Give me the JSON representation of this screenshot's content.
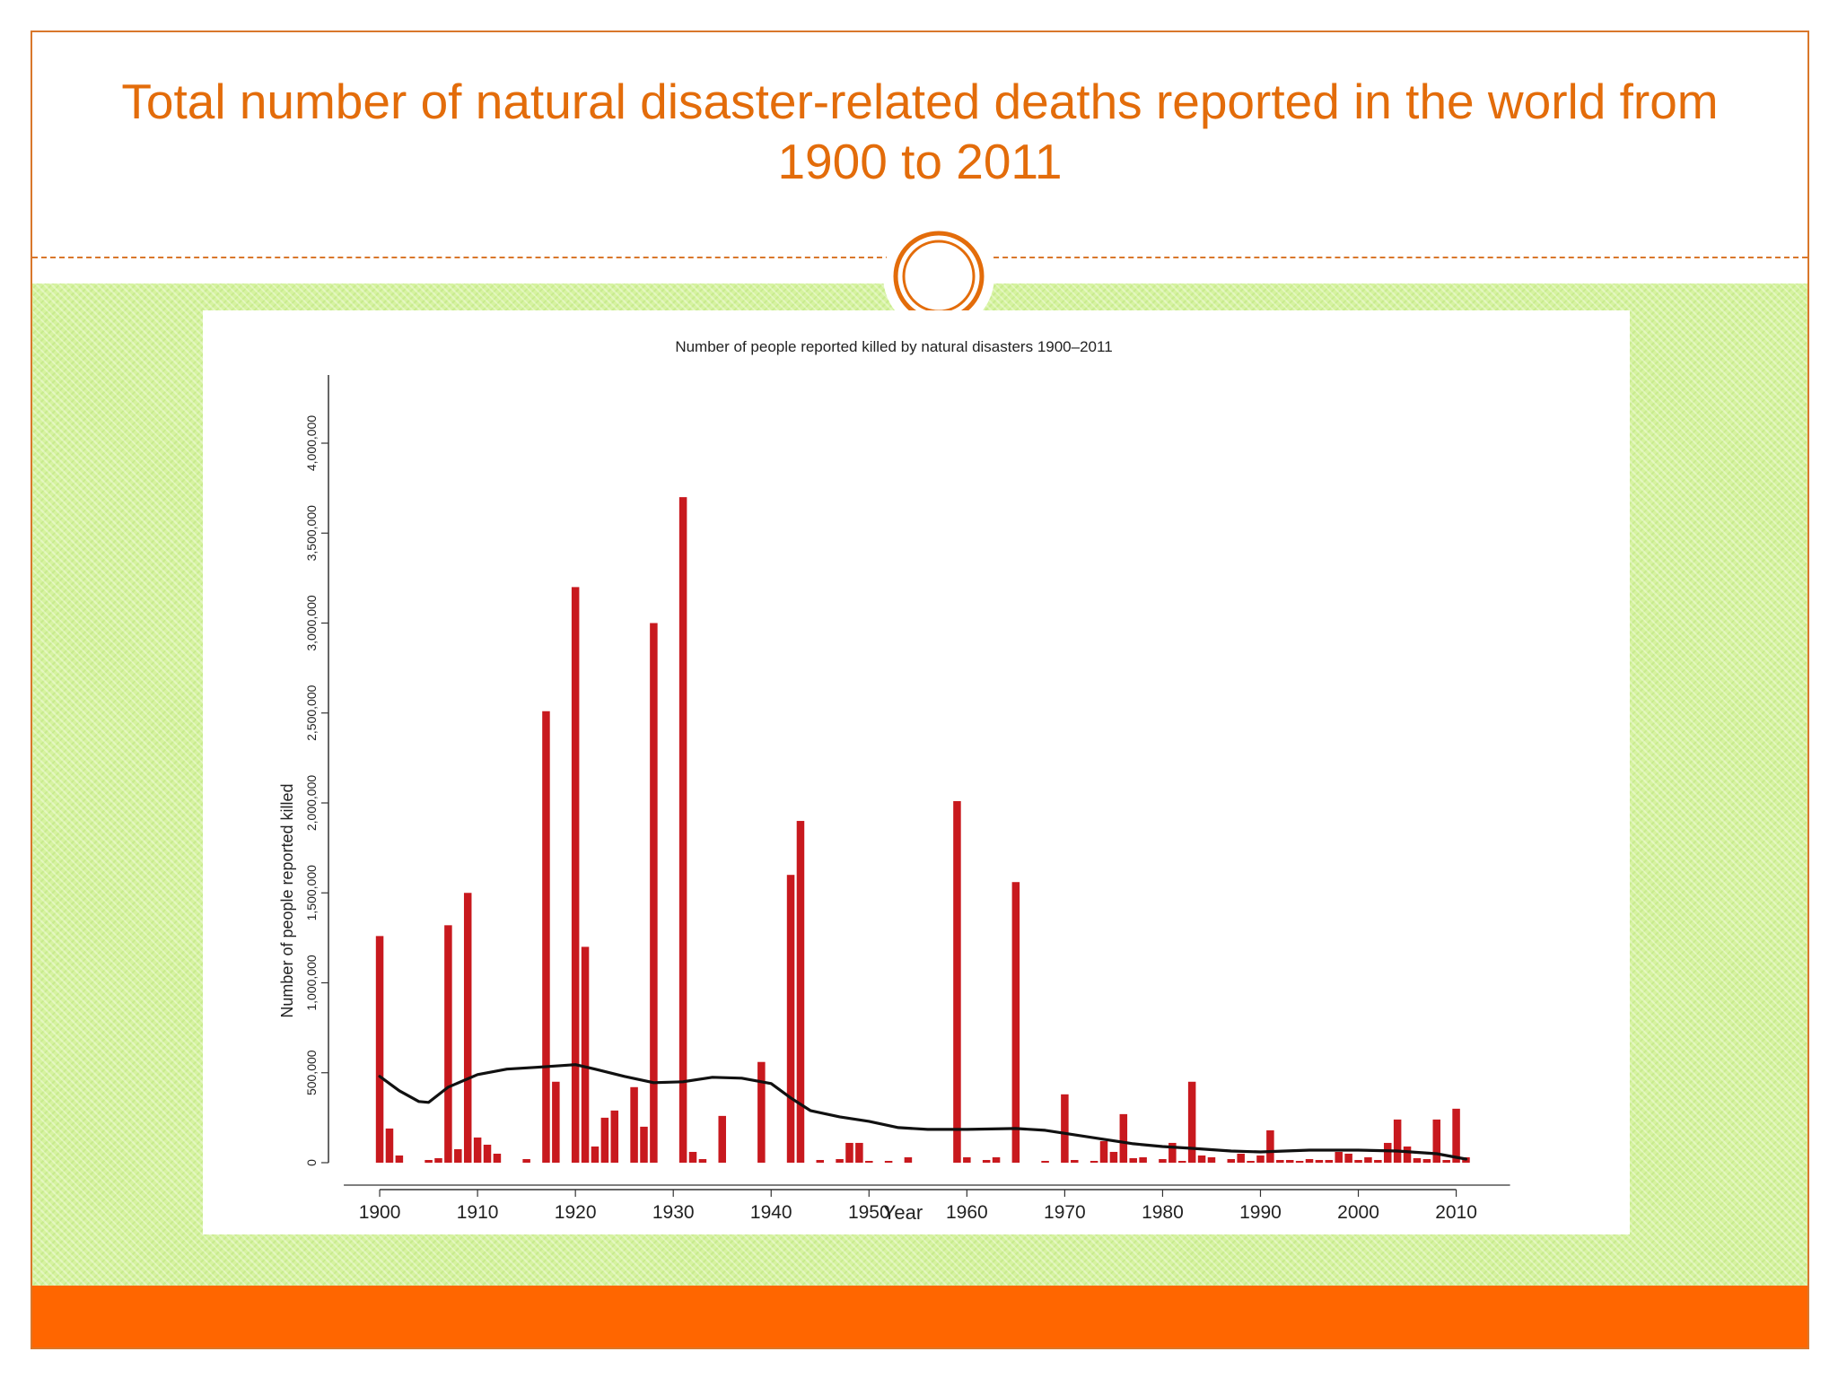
{
  "slide": {
    "title": "Total number of natural disaster-related deaths reported in the world from 1900 to 2011",
    "colors": {
      "accent": "#e36c0a",
      "frame": "#d9772b",
      "footer": "#ff6600",
      "background_pattern": "#d6f3a0",
      "bar": "#c8191e",
      "trend": "#111111"
    }
  },
  "chart_data": {
    "type": "bar",
    "title": "Number of people reported killed by natural disasters 1900–2011",
    "xlabel": "Year",
    "ylabel": "Number of people reported killed",
    "xlim": [
      1895.5,
      2016
    ],
    "ylim": [
      0,
      4200000
    ],
    "x_ticks": [
      1900,
      1910,
      1920,
      1930,
      1940,
      1950,
      1960,
      1970,
      1980,
      1990,
      2000,
      2010
    ],
    "x_tick_labels": [
      "1900",
      "1910",
      "1920",
      "1930",
      "1940",
      "1950",
      "1960",
      "1970",
      "1980",
      "1990",
      "2000",
      "2010"
    ],
    "y_ticks": [
      0,
      500000,
      1000000,
      1500000,
      2000000,
      2500000,
      3000000,
      3500000,
      4000000
    ],
    "y_tick_labels": [
      "0",
      "500,000",
      "1,000,000",
      "1,500,000",
      "2,000,000",
      "2,500,000",
      "3,000,000",
      "3,500,000",
      "4,000,000"
    ],
    "grid": false,
    "series": [
      {
        "type": "bar",
        "points": [
          [
            1900,
            1260000
          ],
          [
            1901,
            190000
          ],
          [
            1902,
            40000
          ],
          [
            1905,
            15000
          ],
          [
            1906,
            25000
          ],
          [
            1907,
            1320000
          ],
          [
            1908,
            75000
          ],
          [
            1909,
            1500000
          ],
          [
            1910,
            140000
          ],
          [
            1911,
            100000
          ],
          [
            1912,
            50000
          ],
          [
            1915,
            20000
          ],
          [
            1917,
            2510000
          ],
          [
            1918,
            450000
          ],
          [
            1920,
            3200000
          ],
          [
            1921,
            1200000
          ],
          [
            1922,
            90000
          ],
          [
            1923,
            250000
          ],
          [
            1924,
            290000
          ],
          [
            1926,
            420000
          ],
          [
            1927,
            200000
          ],
          [
            1928,
            3000000
          ],
          [
            1931,
            3700000
          ],
          [
            1932,
            60000
          ],
          [
            1933,
            20000
          ],
          [
            1935,
            260000
          ],
          [
            1939,
            560000
          ],
          [
            1942,
            1600000
          ],
          [
            1943,
            1900000
          ],
          [
            1945,
            15000
          ],
          [
            1947,
            20000
          ],
          [
            1948,
            110000
          ],
          [
            1949,
            110000
          ],
          [
            1950,
            10000
          ],
          [
            1952,
            10000
          ],
          [
            1954,
            30000
          ],
          [
            1959,
            2010000
          ],
          [
            1960,
            30000
          ],
          [
            1962,
            15000
          ],
          [
            1963,
            30000
          ],
          [
            1965,
            1560000
          ],
          [
            1968,
            10000
          ],
          [
            1970,
            380000
          ],
          [
            1971,
            15000
          ],
          [
            1973,
            10000
          ],
          [
            1974,
            120000
          ],
          [
            1975,
            60000
          ],
          [
            1976,
            270000
          ],
          [
            1977,
            25000
          ],
          [
            1978,
            30000
          ],
          [
            1980,
            20000
          ],
          [
            1981,
            110000
          ],
          [
            1982,
            10000
          ],
          [
            1983,
            450000
          ],
          [
            1984,
            40000
          ],
          [
            1985,
            30000
          ],
          [
            1987,
            20000
          ],
          [
            1988,
            50000
          ],
          [
            1989,
            10000
          ],
          [
            1990,
            40000
          ],
          [
            1991,
            180000
          ],
          [
            1992,
            15000
          ],
          [
            1993,
            15000
          ],
          [
            1994,
            10000
          ],
          [
            1995,
            20000
          ],
          [
            1996,
            15000
          ],
          [
            1997,
            15000
          ],
          [
            1998,
            60000
          ],
          [
            1999,
            50000
          ],
          [
            2000,
            15000
          ],
          [
            2001,
            30000
          ],
          [
            2002,
            15000
          ],
          [
            2003,
            110000
          ],
          [
            2004,
            240000
          ],
          [
            2005,
            90000
          ],
          [
            2006,
            25000
          ],
          [
            2007,
            20000
          ],
          [
            2008,
            240000
          ],
          [
            2009,
            15000
          ],
          [
            2010,
            300000
          ],
          [
            2011,
            30000
          ]
        ]
      },
      {
        "type": "line",
        "points": [
          [
            1900,
            480000
          ],
          [
            1902,
            400000
          ],
          [
            1904,
            340000
          ],
          [
            1905,
            335000
          ],
          [
            1907,
            420000
          ],
          [
            1910,
            490000
          ],
          [
            1913,
            520000
          ],
          [
            1916,
            530000
          ],
          [
            1920,
            545000
          ],
          [
            1922,
            520000
          ],
          [
            1925,
            480000
          ],
          [
            1928,
            445000
          ],
          [
            1931,
            450000
          ],
          [
            1934,
            475000
          ],
          [
            1937,
            470000
          ],
          [
            1940,
            440000
          ],
          [
            1942,
            360000
          ],
          [
            1944,
            290000
          ],
          [
            1947,
            255000
          ],
          [
            1950,
            230000
          ],
          [
            1953,
            195000
          ],
          [
            1956,
            185000
          ],
          [
            1960,
            185000
          ],
          [
            1965,
            190000
          ],
          [
            1968,
            180000
          ],
          [
            1971,
            155000
          ],
          [
            1974,
            130000
          ],
          [
            1977,
            105000
          ],
          [
            1980,
            90000
          ],
          [
            1983,
            80000
          ],
          [
            1987,
            65000
          ],
          [
            1990,
            60000
          ],
          [
            1995,
            70000
          ],
          [
            2000,
            70000
          ],
          [
            2004,
            65000
          ],
          [
            2008,
            50000
          ],
          [
            2011,
            20000
          ]
        ]
      }
    ]
  }
}
